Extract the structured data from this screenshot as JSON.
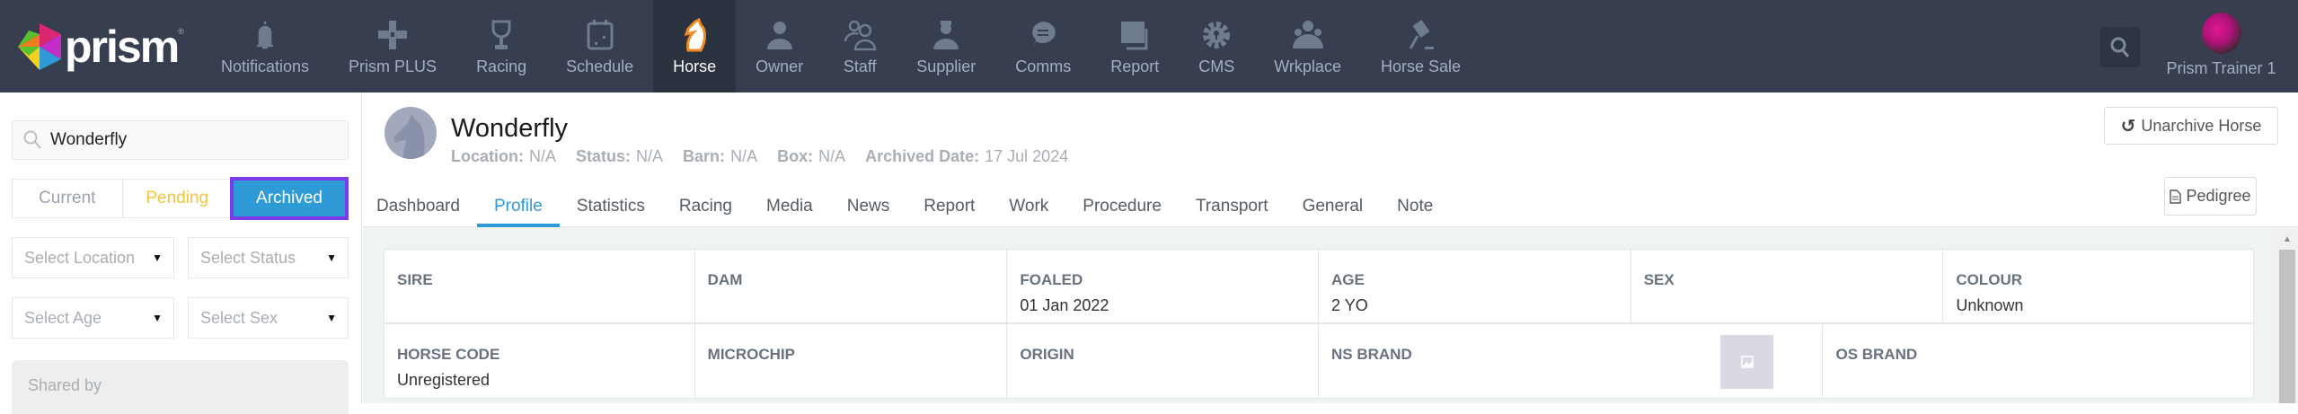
{
  "brand": {
    "name": "prism",
    "reg": "®"
  },
  "colors": {
    "nav_bg": "#363e50",
    "nav_active": "#2b3240",
    "accent": "#2f9bd6",
    "pending": "#f2c53d",
    "highlight": "#7c3aed",
    "horse_icon": "#f08a24"
  },
  "nav": {
    "items": [
      {
        "label": "Notifications",
        "icon": "bell"
      },
      {
        "label": "Prism PLUS",
        "icon": "plus"
      },
      {
        "label": "Racing",
        "icon": "trophy"
      },
      {
        "label": "Schedule",
        "icon": "calendar"
      },
      {
        "label": "Horse",
        "icon": "horse",
        "active": true
      },
      {
        "label": "Owner",
        "icon": "user"
      },
      {
        "label": "Staff",
        "icon": "users"
      },
      {
        "label": "Supplier",
        "icon": "supplier"
      },
      {
        "label": "Comms",
        "icon": "chat"
      },
      {
        "label": "Report",
        "icon": "report"
      },
      {
        "label": "CMS",
        "icon": "gear-lock"
      },
      {
        "label": "Wrkplace",
        "icon": "group"
      },
      {
        "label": "Horse Sale",
        "icon": "gavel"
      }
    ],
    "search_icon": "search",
    "user": {
      "name": "Prism Trainer 1"
    }
  },
  "sidebar": {
    "search": {
      "value": "Wonderfly"
    },
    "tabs": [
      "Current",
      "Pending",
      "Archived"
    ],
    "active_tab": "Archived",
    "filters": {
      "location": "Select Location",
      "status": "Select Status",
      "age": "Select Age",
      "sex": "Select Sex"
    },
    "shared_by": "Shared by"
  },
  "horse": {
    "name": "Wonderfly",
    "meta": [
      {
        "label": "Location:",
        "value": "N/A"
      },
      {
        "label": "Status:",
        "value": "N/A"
      },
      {
        "label": "Barn:",
        "value": "N/A"
      },
      {
        "label": "Box:",
        "value": "N/A"
      },
      {
        "label": "Archived Date:",
        "value": "17 Jul 2024"
      }
    ],
    "unarchive_label": "Unarchive Horse",
    "pedigree_label": "Pedigree",
    "tabs": [
      "Dashboard",
      "Profile",
      "Statistics",
      "Racing",
      "Media",
      "News",
      "Report",
      "Work",
      "Procedure",
      "Transport",
      "General",
      "Note"
    ],
    "active_tab": "Profile"
  },
  "profile": {
    "row1": [
      {
        "label": "SIRE",
        "value": ""
      },
      {
        "label": "DAM",
        "value": ""
      },
      {
        "label": "FOALED",
        "value": "01 Jan 2022"
      },
      {
        "label": "AGE",
        "value": "2 YO"
      },
      {
        "label": "SEX",
        "value": ""
      },
      {
        "label": "COLOUR",
        "value": "Unknown"
      }
    ],
    "row2": [
      {
        "label": "HORSE CODE",
        "value": "Unregistered"
      },
      {
        "label": "MICROCHIP",
        "value": ""
      },
      {
        "label": "ORIGIN",
        "value": ""
      },
      {
        "label": "NS BRAND",
        "value": ""
      },
      {
        "label": "OS BRAND",
        "value": ""
      }
    ]
  }
}
